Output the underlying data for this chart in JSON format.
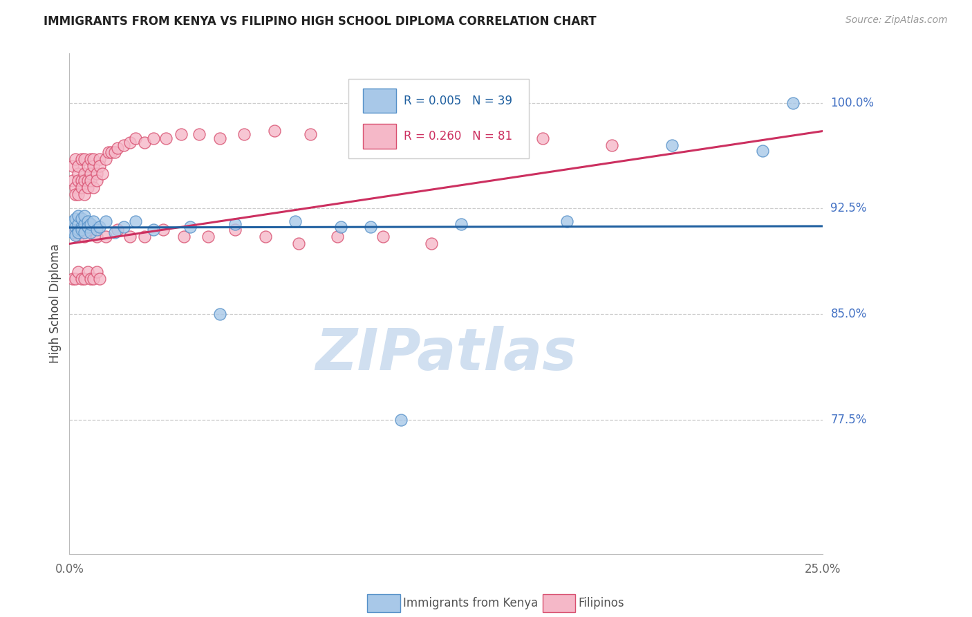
{
  "title": "IMMIGRANTS FROM KENYA VS FILIPINO HIGH SCHOOL DIPLOMA CORRELATION CHART",
  "source": "Source: ZipAtlas.com",
  "ylabel": "High School Diploma",
  "xlim": [
    0.0,
    0.25
  ],
  "ylim": [
    0.68,
    1.035
  ],
  "legend_label1": "Immigrants from Kenya",
  "legend_label2": "Filipinos",
  "blue_scatter_color": "#a8c8e8",
  "blue_scatter_edge": "#5590c8",
  "pink_scatter_color": "#f5b8c8",
  "pink_scatter_edge": "#d85070",
  "blue_line_color": "#2060a0",
  "pink_line_color": "#cc3060",
  "watermark_color": "#d0dff0",
  "ytick_positions": [
    0.775,
    0.85,
    0.925,
    1.0
  ],
  "ytick_labels": [
    "77.5%",
    "85.0%",
    "92.5%",
    "100.0%"
  ],
  "kenya_x": [
    0.001,
    0.001,
    0.002,
    0.002,
    0.002,
    0.003,
    0.003,
    0.003,
    0.003,
    0.004,
    0.004,
    0.004,
    0.005,
    0.005,
    0.005,
    0.006,
    0.006,
    0.007,
    0.007,
    0.008,
    0.009,
    0.01,
    0.012,
    0.015,
    0.018,
    0.022,
    0.028,
    0.04,
    0.055,
    0.075,
    0.1,
    0.13,
    0.165,
    0.2,
    0.23,
    0.05,
    0.09,
    0.24,
    0.11
  ],
  "kenya_y": [
    0.916,
    0.908,
    0.912,
    0.906,
    0.918,
    0.91,
    0.914,
    0.908,
    0.92,
    0.912,
    0.918,
    0.91,
    0.914,
    0.908,
    0.92,
    0.916,
    0.912,
    0.908,
    0.914,
    0.916,
    0.91,
    0.912,
    0.916,
    0.908,
    0.912,
    0.916,
    0.91,
    0.912,
    0.914,
    0.916,
    0.912,
    0.914,
    0.916,
    0.97,
    0.966,
    0.85,
    0.912,
    1.0,
    0.775
  ],
  "filipino_x": [
    0.001,
    0.001,
    0.002,
    0.002,
    0.002,
    0.003,
    0.003,
    0.003,
    0.003,
    0.004,
    0.004,
    0.004,
    0.005,
    0.005,
    0.005,
    0.005,
    0.006,
    0.006,
    0.006,
    0.007,
    0.007,
    0.007,
    0.008,
    0.008,
    0.008,
    0.009,
    0.009,
    0.01,
    0.01,
    0.011,
    0.012,
    0.013,
    0.014,
    0.015,
    0.016,
    0.018,
    0.02,
    0.022,
    0.025,
    0.028,
    0.032,
    0.037,
    0.043,
    0.05,
    0.058,
    0.068,
    0.08,
    0.095,
    0.112,
    0.133,
    0.157,
    0.002,
    0.003,
    0.004,
    0.005,
    0.007,
    0.009,
    0.012,
    0.016,
    0.02,
    0.025,
    0.031,
    0.038,
    0.046,
    0.055,
    0.065,
    0.076,
    0.089,
    0.104,
    0.12,
    0.001,
    0.002,
    0.003,
    0.004,
    0.005,
    0.006,
    0.007,
    0.008,
    0.009,
    0.01,
    0.18
  ],
  "filipino_y": [
    0.955,
    0.945,
    0.96,
    0.94,
    0.935,
    0.95,
    0.945,
    0.955,
    0.935,
    0.96,
    0.945,
    0.94,
    0.95,
    0.96,
    0.945,
    0.935,
    0.955,
    0.945,
    0.94,
    0.95,
    0.96,
    0.945,
    0.955,
    0.94,
    0.96,
    0.95,
    0.945,
    0.96,
    0.955,
    0.95,
    0.96,
    0.965,
    0.965,
    0.965,
    0.968,
    0.97,
    0.972,
    0.975,
    0.972,
    0.975,
    0.975,
    0.978,
    0.978,
    0.975,
    0.978,
    0.98,
    0.978,
    0.975,
    0.98,
    0.978,
    0.975,
    0.91,
    0.905,
    0.91,
    0.905,
    0.91,
    0.905,
    0.905,
    0.91,
    0.905,
    0.905,
    0.91,
    0.905,
    0.905,
    0.91,
    0.905,
    0.9,
    0.905,
    0.905,
    0.9,
    0.875,
    0.875,
    0.88,
    0.875,
    0.875,
    0.88,
    0.875,
    0.875,
    0.88,
    0.875,
    0.97
  ],
  "kenya_line_x": [
    0.0,
    0.25
  ],
  "kenya_line_y": [
    0.9115,
    0.9125
  ],
  "filipino_line_x": [
    0.0,
    0.25
  ],
  "filipino_line_y": [
    0.9,
    0.98
  ]
}
